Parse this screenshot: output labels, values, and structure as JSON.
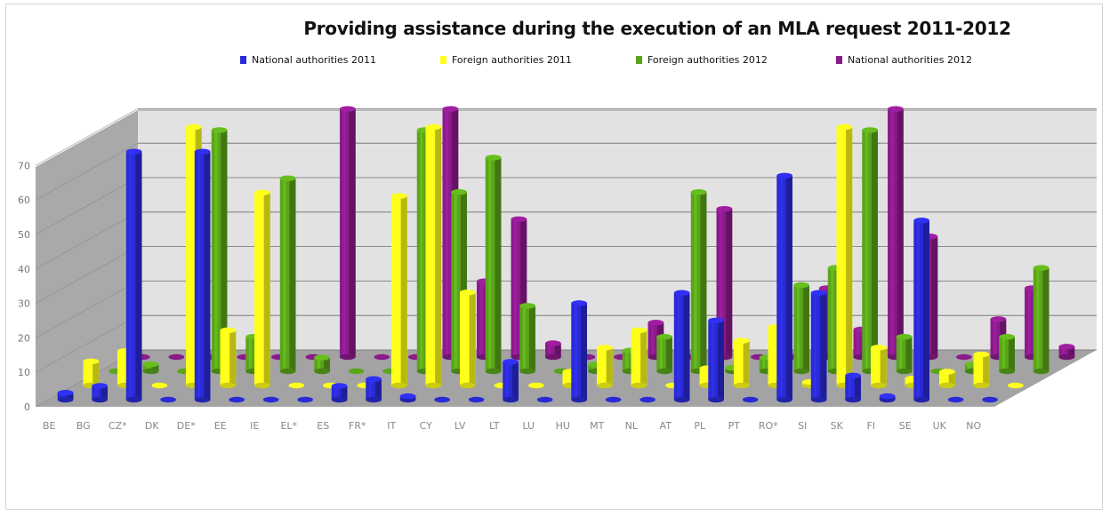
{
  "chart_data": {
    "type": "bar",
    "title": "Providing assistance during the execution of an MLA request 2011-2012",
    "categories": [
      "BE",
      "BG",
      "CZ*",
      "DK",
      "DE*",
      "EE",
      "IE",
      "EL*",
      "ES",
      "FR*",
      "IT",
      "CY",
      "LV",
      "LT",
      "LU",
      "HU",
      "MT",
      "NL",
      "AT",
      "PL",
      "PT",
      "RO*",
      "SI",
      "SK",
      "FI",
      "SE",
      "UK",
      "NO"
    ],
    "series": [
      {
        "name": "National authorities 2011",
        "color": "#2a2ad6",
        "values": [
          2,
          4,
          72,
          0,
          72,
          0,
          0,
          0,
          4,
          6,
          1,
          0,
          0,
          11,
          0,
          28,
          0,
          0,
          31,
          23,
          0,
          65,
          31,
          7,
          1,
          52,
          0,
          0
        ]
      },
      {
        "name": "Foreign authorities 2011",
        "color": "#ffff1a",
        "values": [
          7,
          10,
          0,
          75,
          16,
          56,
          0,
          0,
          0,
          55,
          75,
          27,
          0,
          0,
          4,
          11,
          16,
          0,
          5,
          13,
          17,
          1,
          75,
          11,
          2,
          4,
          9,
          0
        ]
      },
      {
        "name": "Foreign authorities 2012",
        "color": "#5aa51a",
        "values": [
          0,
          2,
          0,
          70,
          10,
          56,
          4,
          0,
          0,
          70,
          52,
          62,
          19,
          0,
          2,
          6,
          10,
          52,
          1,
          4,
          25,
          30,
          70,
          10,
          0,
          2,
          10,
          30
        ]
      },
      {
        "name": "National authorities 2012",
        "color": "#8b1a8b",
        "values": [
          0,
          0,
          0,
          0,
          0,
          0,
          72,
          0,
          0,
          72,
          22,
          40,
          4,
          0,
          0,
          10,
          0,
          43,
          0,
          0,
          20,
          8,
          72,
          35,
          0,
          11,
          20,
          3
        ]
      }
    ],
    "yticks": [
      0,
      10,
      20,
      30,
      40,
      50,
      60,
      70
    ],
    "ylim": [
      0,
      80
    ],
    "legend_position": "top",
    "grid": true
  }
}
